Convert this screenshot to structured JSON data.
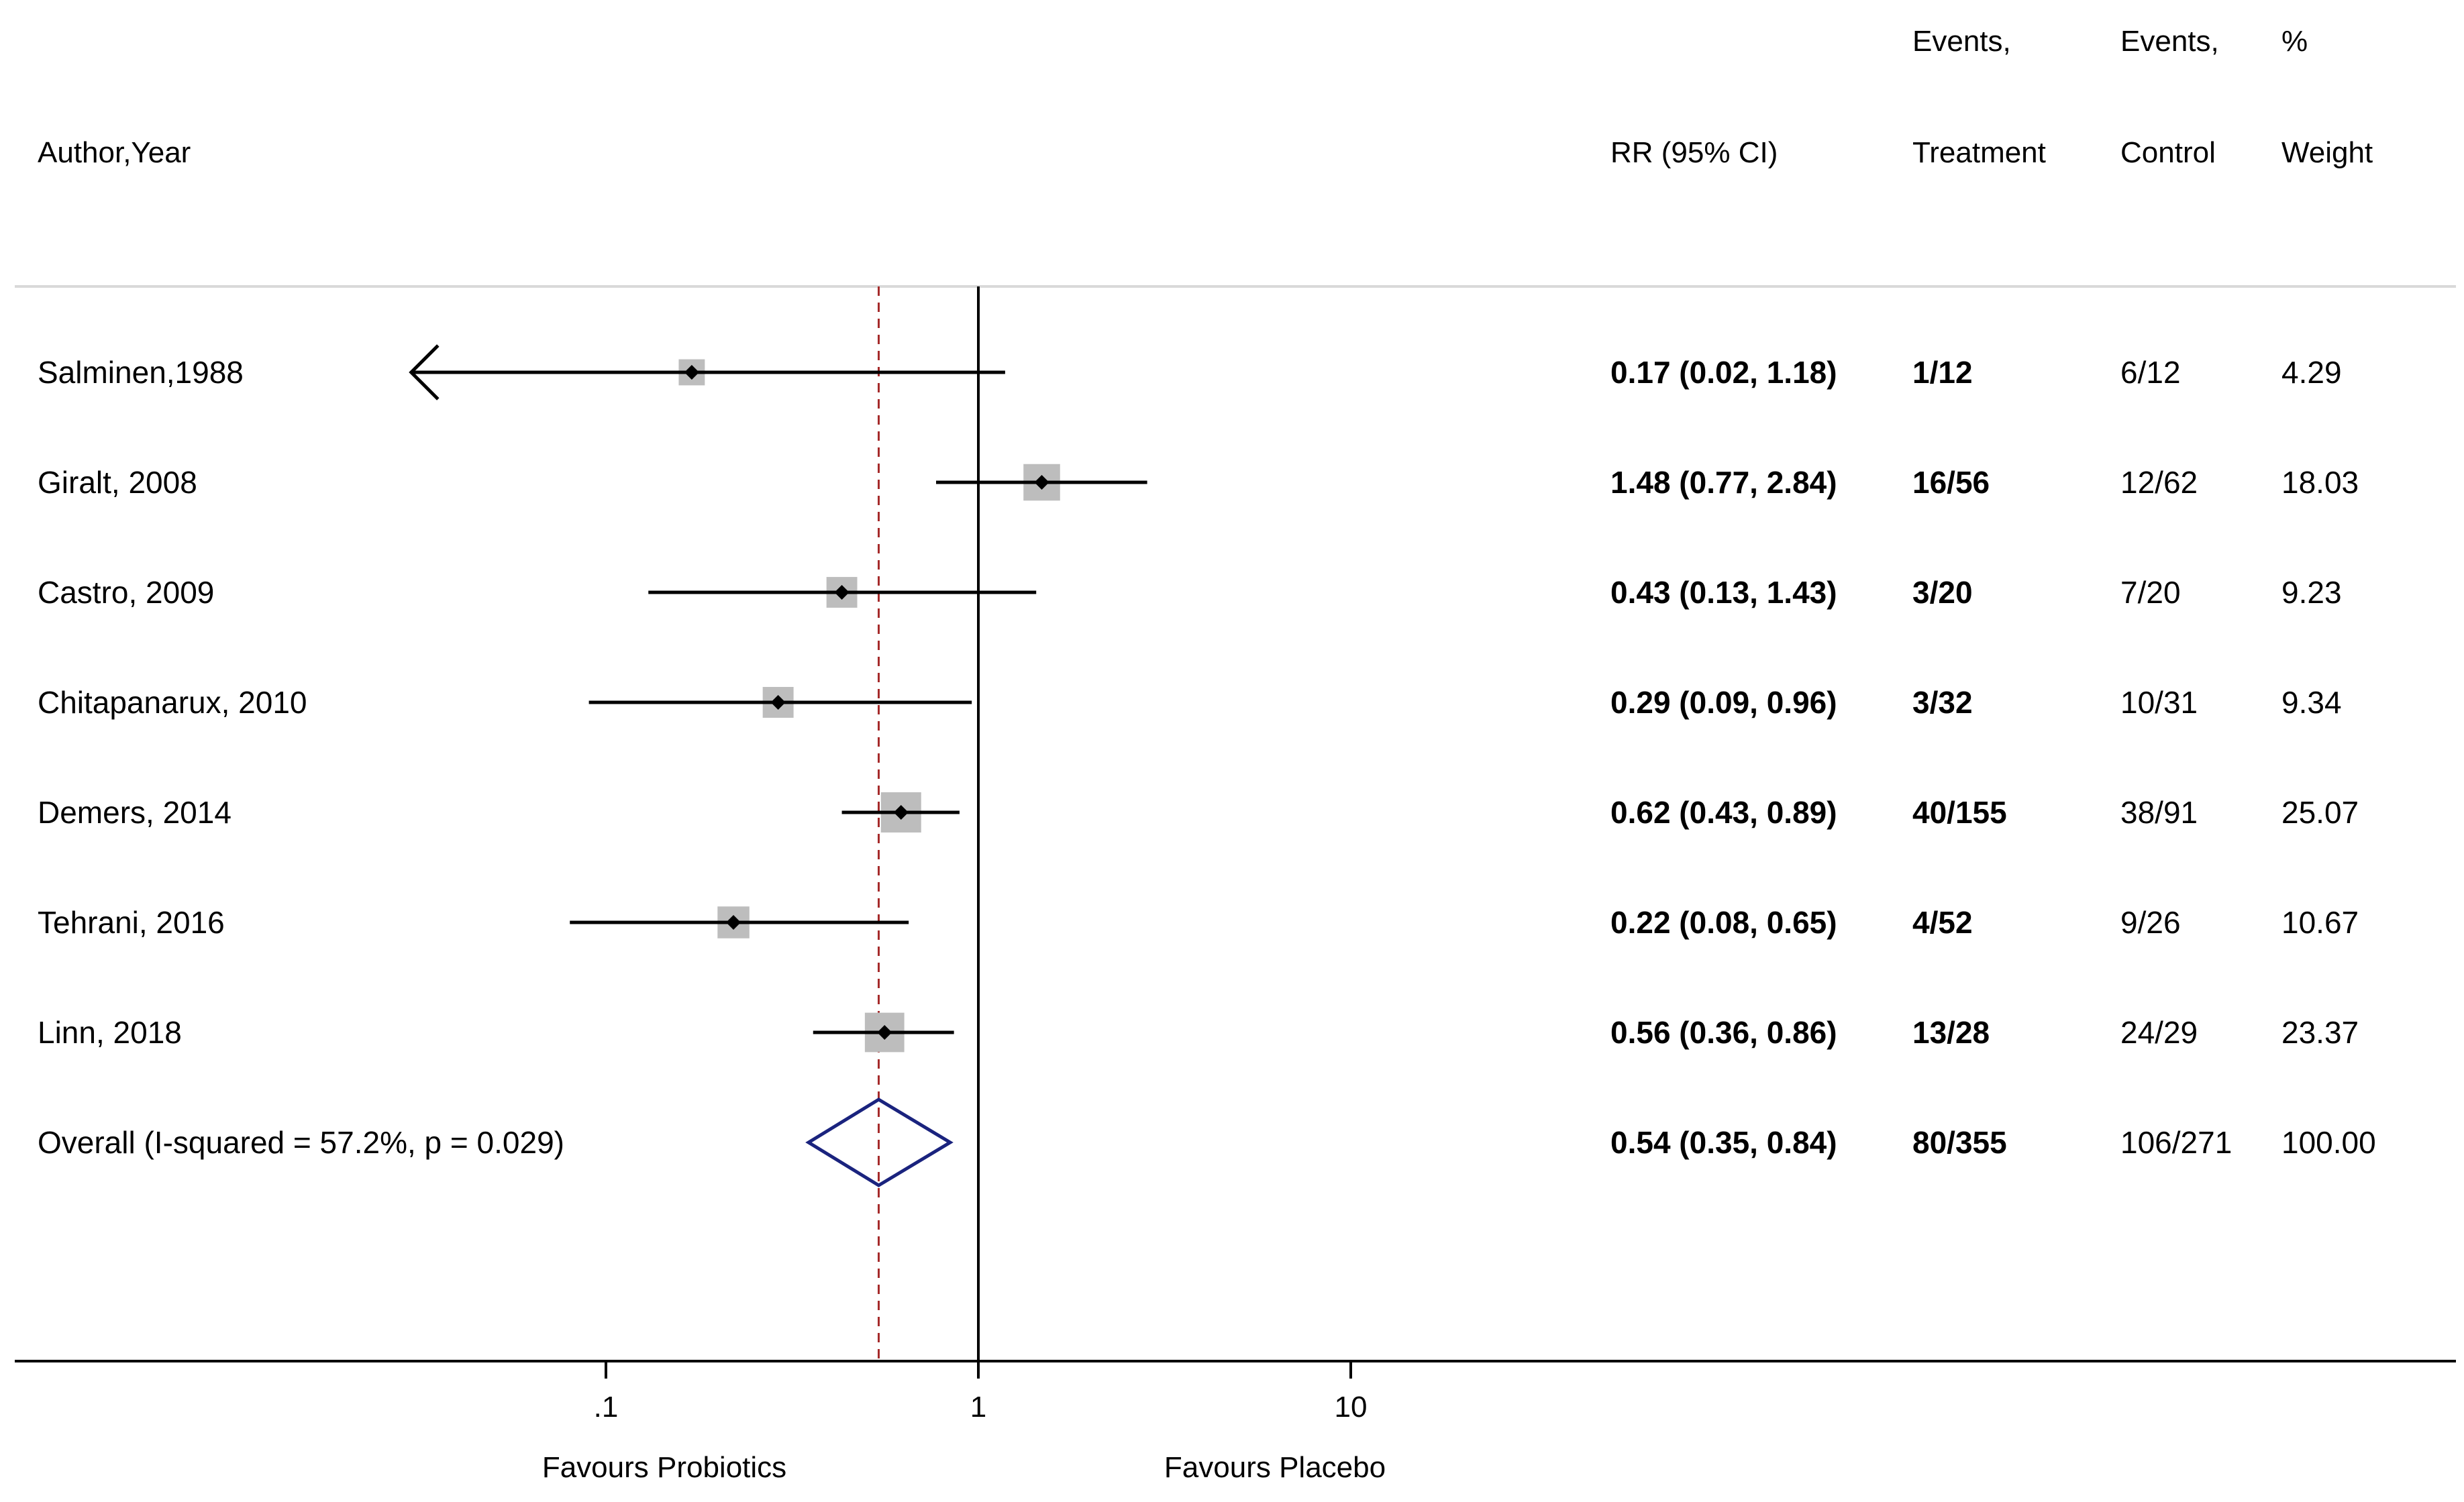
{
  "chart_data": {
    "type": "forest",
    "scale": "log",
    "x_ticks": [
      {
        "value": 0.1,
        "label": ".1"
      },
      {
        "value": 1,
        "label": "1"
      },
      {
        "value": 10,
        "label": "10"
      }
    ],
    "null_line": 1,
    "pooled_line": 0.54,
    "xlabel_left": "Favours Probiotics",
    "xlabel_right": "Favours Placebo",
    "headers": {
      "study": "Author,Year",
      "rr": "RR (95% CI)",
      "events_treatment_top": "Events,",
      "events_treatment_bottom": "Treatment",
      "events_control_top": "Events,",
      "events_control_bottom": "Control",
      "weight_top": "%",
      "weight_bottom": "Weight"
    },
    "studies": [
      {
        "label": "Salminen,1988",
        "rr": 0.17,
        "lo": 0.02,
        "hi": 1.18,
        "rr_text": "0.17 (0.02, 1.18)",
        "treatment": "1/12",
        "control": "6/12",
        "weight": 4.29,
        "weight_text": "4.29"
      },
      {
        "label": "Giralt, 2008",
        "rr": 1.48,
        "lo": 0.77,
        "hi": 2.84,
        "rr_text": "1.48 (0.77, 2.84)",
        "treatment": "16/56",
        "control": "12/62",
        "weight": 18.03,
        "weight_text": "18.03"
      },
      {
        "label": "Castro, 2009",
        "rr": 0.43,
        "lo": 0.13,
        "hi": 1.43,
        "rr_text": "0.43 (0.13, 1.43)",
        "treatment": "3/20",
        "control": "7/20",
        "weight": 9.23,
        "weight_text": "9.23"
      },
      {
        "label": "Chitapanarux, 2010",
        "rr": 0.29,
        "lo": 0.09,
        "hi": 0.96,
        "rr_text": "0.29 (0.09, 0.96)",
        "treatment": "3/32",
        "control": "10/31",
        "weight": 9.34,
        "weight_text": "9.34"
      },
      {
        "label": "Demers, 2014",
        "rr": 0.62,
        "lo": 0.43,
        "hi": 0.89,
        "rr_text": "0.62 (0.43, 0.89)",
        "treatment": "40/155",
        "control": "38/91",
        "weight": 25.07,
        "weight_text": "25.07"
      },
      {
        "label": "Tehrani, 2016",
        "rr": 0.22,
        "lo": 0.08,
        "hi": 0.65,
        "rr_text": "0.22 (0.08, 0.65)",
        "treatment": "4/52",
        "control": "9/26",
        "weight": 10.67,
        "weight_text": "10.67"
      },
      {
        "label": "Linn, 2018",
        "rr": 0.56,
        "lo": 0.36,
        "hi": 0.86,
        "rr_text": "0.56 (0.36, 0.86)",
        "treatment": "13/28",
        "control": "24/29",
        "weight": 23.37,
        "weight_text": "23.37"
      }
    ],
    "overall": {
      "label": "Overall  (I-squared = 57.2%, p = 0.029)",
      "rr": 0.54,
      "lo": 0.35,
      "hi": 0.84,
      "rr_text": "0.54 (0.35, 0.84)",
      "treatment": "80/355",
      "control": "106/271",
      "weight_text": "100.00"
    },
    "colors": {
      "line": "#000000",
      "box": "#bdbdbd",
      "pooled_line": "#a52a2a",
      "diamond": "#1a237e",
      "separator": "#d9d9d9"
    }
  }
}
